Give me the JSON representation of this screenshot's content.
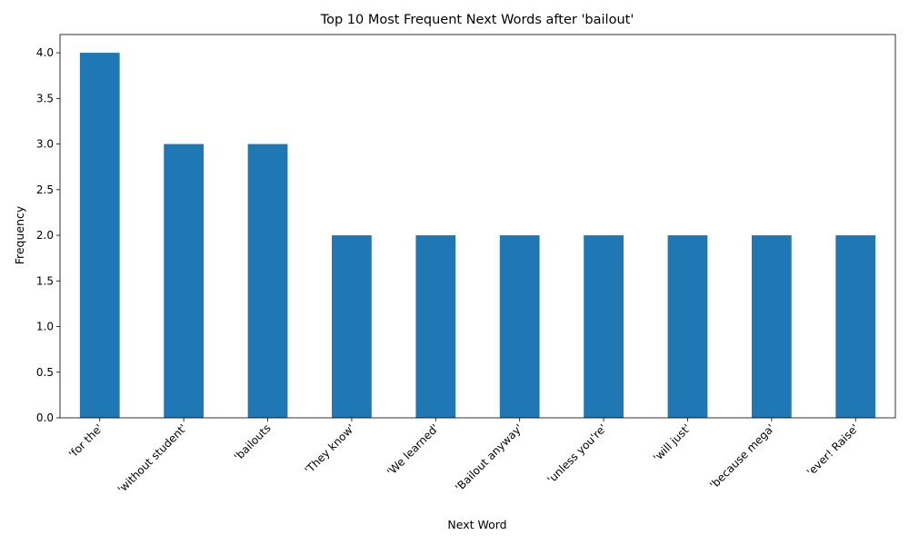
{
  "chart_data": {
    "type": "bar",
    "title": "Top 10 Most Frequent Next Words after 'bailout'",
    "xlabel": "Next Word",
    "ylabel": "Frequency",
    "categories": [
      "'for the'",
      "'without student'",
      "'bailouts",
      "'They know'",
      "'We learned'",
      "'Bailout anyway'",
      "'unless you're'",
      "'will just'",
      "'because mega'",
      "'ever! Raise'"
    ],
    "values": [
      4,
      3,
      3,
      2,
      2,
      2,
      2,
      2,
      2,
      2
    ],
    "ylim": [
      0,
      4.2
    ],
    "yticks": [
      "0.0",
      "0.5",
      "1.0",
      "1.5",
      "2.0",
      "2.5",
      "3.0",
      "3.5",
      "4.0"
    ],
    "bar_color": "#1f77b4",
    "grid": false,
    "legend": "none"
  }
}
